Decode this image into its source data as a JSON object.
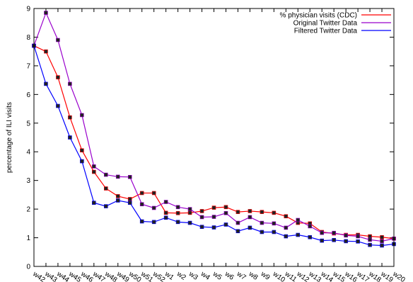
{
  "chart_data": {
    "type": "line",
    "title": "",
    "xlabel": "",
    "ylabel": "percentage of ILI visits",
    "ylim": [
      0,
      9
    ],
    "yticks": [
      0,
      1,
      2,
      3,
      4,
      5,
      6,
      7,
      8,
      9
    ],
    "grid": false,
    "legend_position": "top-right",
    "categories": [
      "w42",
      "w43",
      "w44",
      "w45",
      "w46",
      "w47",
      "w48",
      "w49",
      "w50",
      "w51",
      "w52",
      "w1",
      "w2",
      "w3",
      "w4",
      "w5",
      "w6",
      "w7",
      "w8",
      "w9",
      "w10",
      "w11",
      "w12",
      "w13",
      "w14",
      "w15",
      "w16",
      "w17",
      "w18",
      "w19",
      "w20"
    ],
    "series": [
      {
        "name": "% physician visits (CDC)",
        "color": "#ff0000",
        "values": [
          7.7,
          7.5,
          6.6,
          5.2,
          4.05,
          3.3,
          2.72,
          2.45,
          2.35,
          2.56,
          2.56,
          1.87,
          1.86,
          1.87,
          1.93,
          2.05,
          2.07,
          1.9,
          1.93,
          1.9,
          1.87,
          1.75,
          1.52,
          1.5,
          1.2,
          1.15,
          1.1,
          1.1,
          1.05,
          1.02,
          0.97
        ]
      },
      {
        "name": "Original Twitter Data",
        "color": "#9900cc",
        "values": [
          7.7,
          8.85,
          7.9,
          6.37,
          5.28,
          3.49,
          3.2,
          3.13,
          3.12,
          2.17,
          2.04,
          2.25,
          2.07,
          2.0,
          1.72,
          1.73,
          1.86,
          1.52,
          1.72,
          1.52,
          1.5,
          1.35,
          1.62,
          1.4,
          1.17,
          1.17,
          1.08,
          1.05,
          0.93,
          0.88,
          0.97
        ]
      },
      {
        "name": "Filtered Twitter Data",
        "color": "#0000ff",
        "values": [
          7.7,
          6.37,
          5.6,
          4.5,
          3.67,
          2.22,
          2.1,
          2.3,
          2.22,
          1.57,
          1.55,
          1.7,
          1.55,
          1.52,
          1.38,
          1.36,
          1.46,
          1.23,
          1.35,
          1.2,
          1.2,
          1.05,
          1.1,
          1.02,
          0.9,
          0.92,
          0.88,
          0.87,
          0.75,
          0.73,
          0.78
        ]
      }
    ]
  }
}
